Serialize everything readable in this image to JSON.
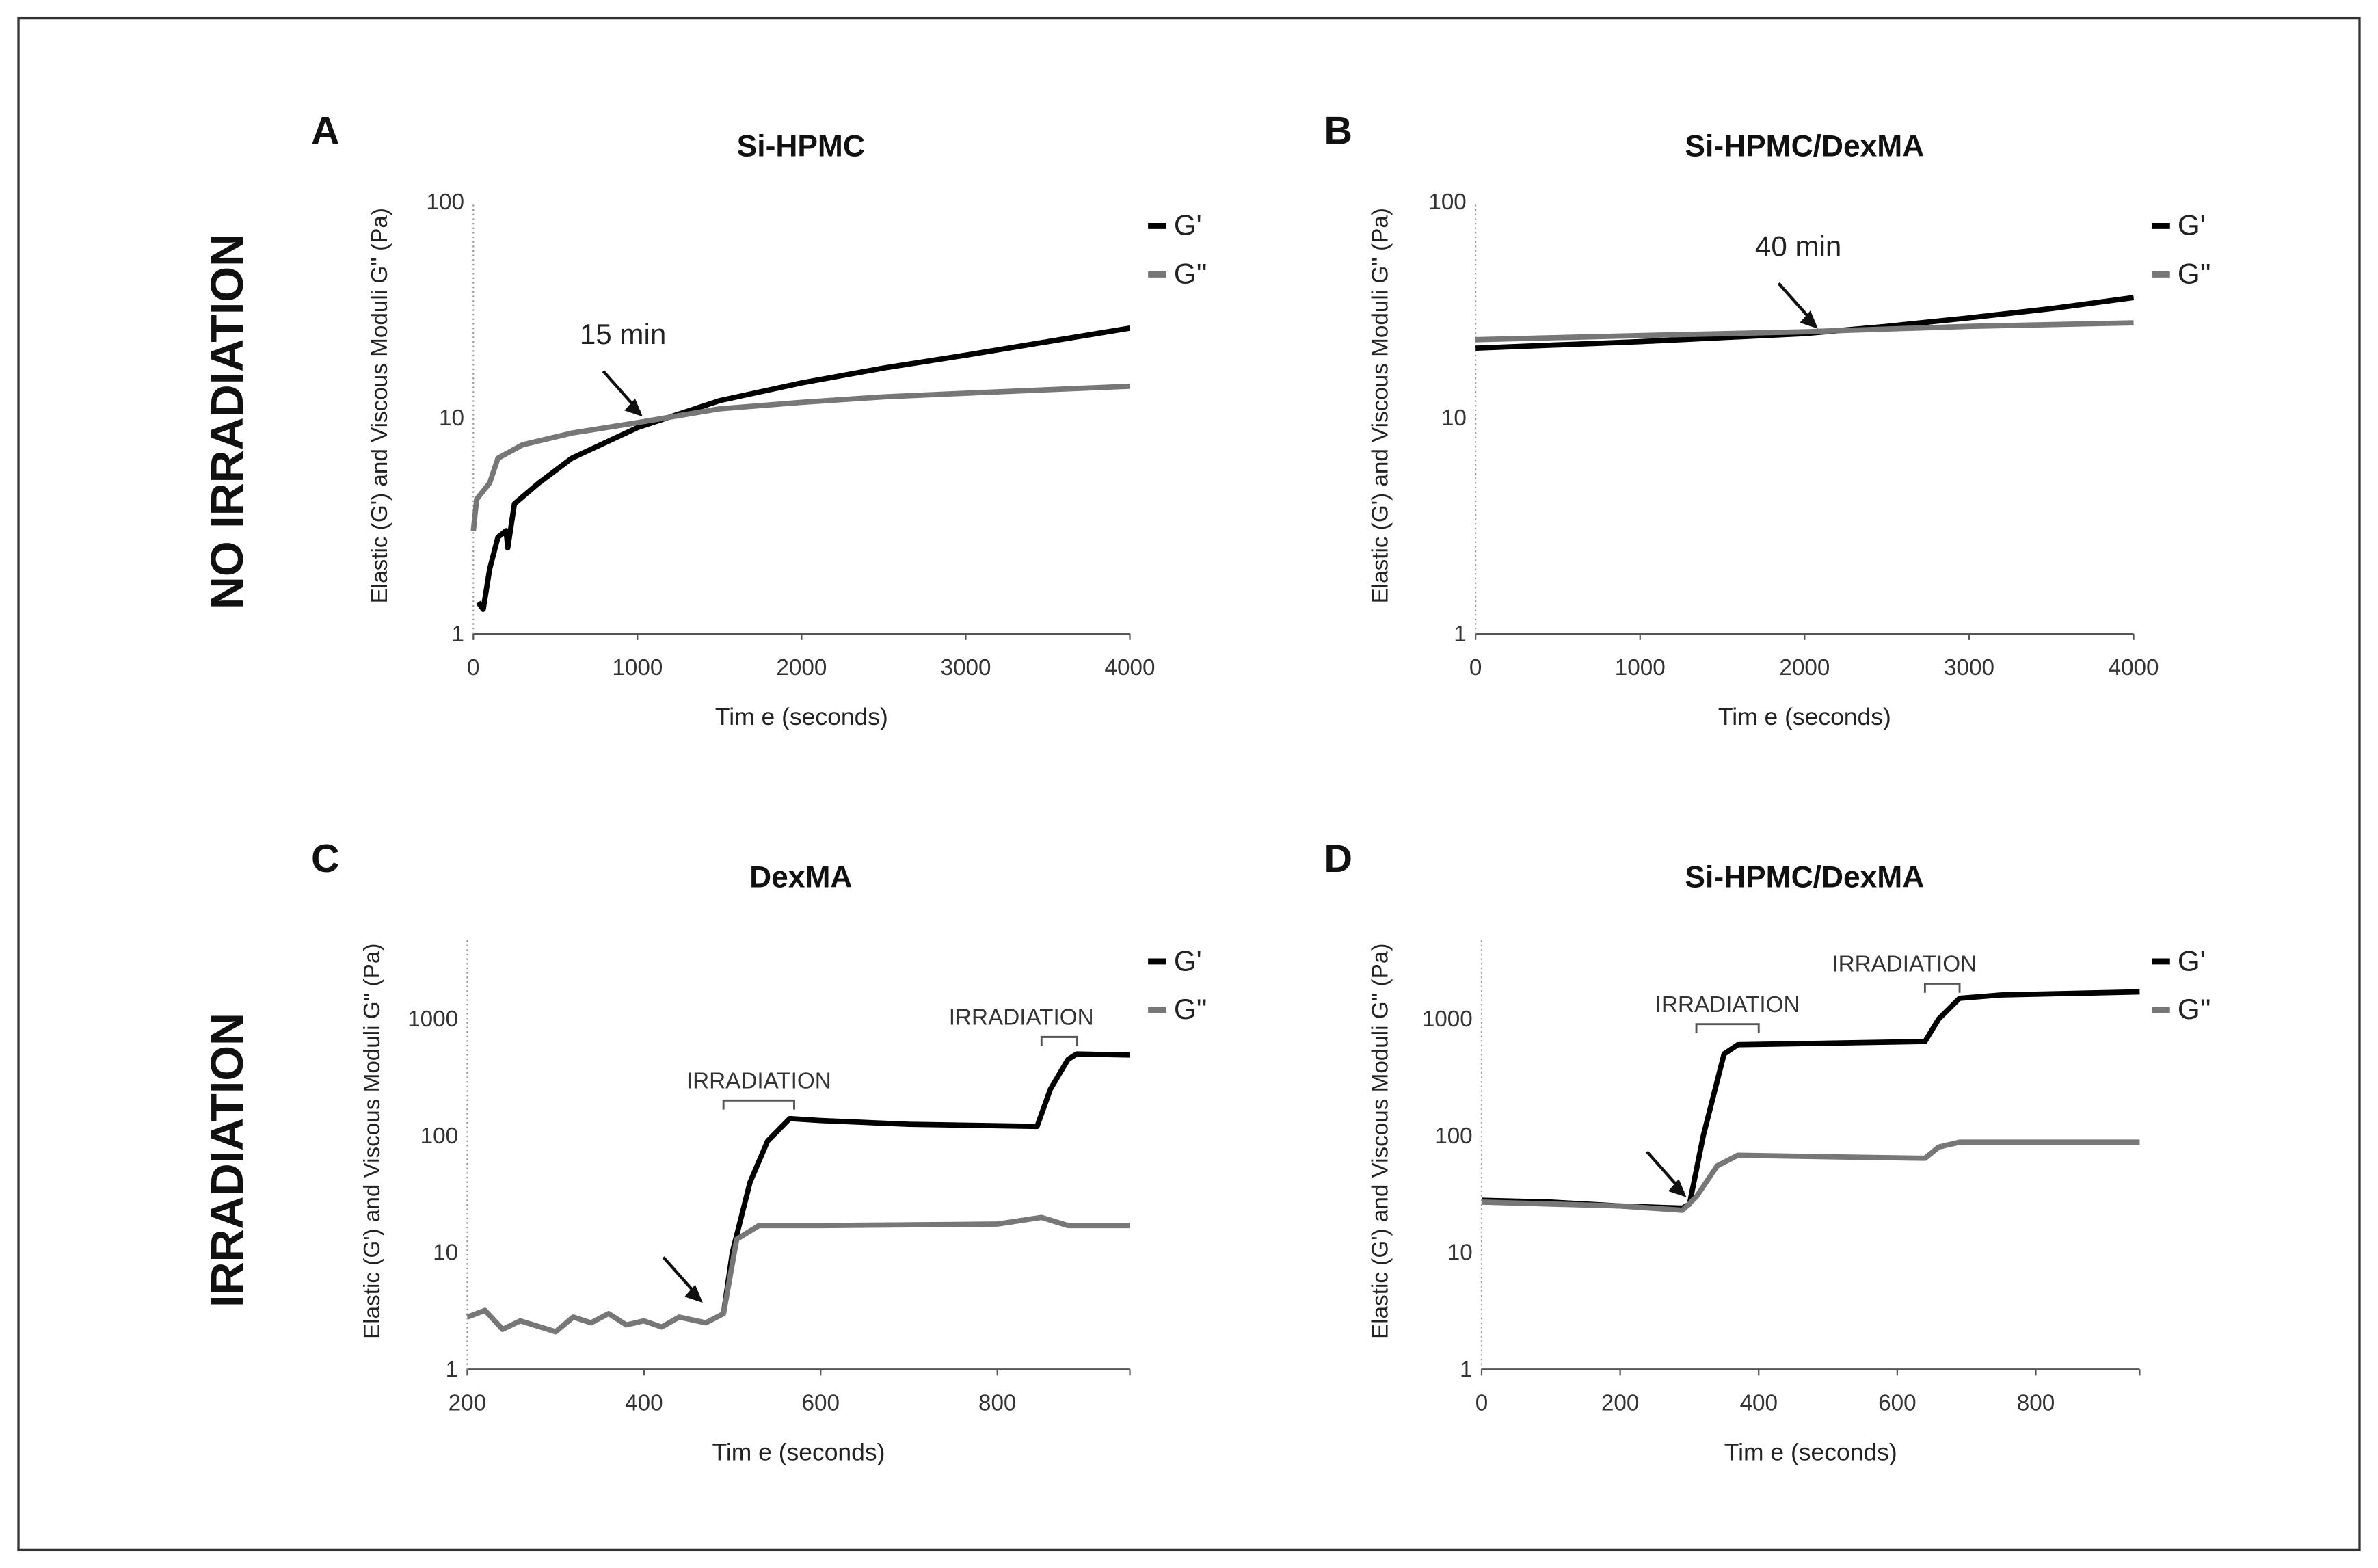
{
  "row_labels": [
    "NO IRRADIATION",
    "IRRADIATION"
  ],
  "chart_data": [
    {
      "panel": "A",
      "type": "line",
      "title": "Si-HPMC",
      "xlabel": "Tim e (seconds)",
      "ylabel": "Elastic (G') and Viscous Moduli G'' (Pa)",
      "xlim": [
        0,
        4000
      ],
      "ylim": [
        1,
        100
      ],
      "yscale": "log",
      "xticks": [
        "0",
        "1000",
        "2000",
        "3000",
        "4000"
      ],
      "xtick_values": [
        0,
        1000,
        2000,
        3000,
        4000
      ],
      "yticks": [
        "1",
        "10",
        "100"
      ],
      "ytick_values": [
        1,
        10,
        100
      ],
      "legend": [
        "G'",
        "G''"
      ],
      "legend_position": "top-right",
      "series": [
        {
          "name": "G'",
          "color": "#000000",
          "x": [
            30,
            60,
            100,
            150,
            200,
            210,
            250,
            400,
            600,
            1000,
            1500,
            2000,
            2500,
            3000,
            3500,
            4000
          ],
          "y": [
            1.4,
            1.3,
            2,
            2.8,
            3,
            2.5,
            4,
            5,
            6.5,
            9,
            12,
            14.5,
            17,
            19.5,
            22.5,
            26
          ]
        },
        {
          "name": "G''",
          "color": "#777777",
          "x": [
            0,
            20,
            100,
            150,
            300,
            600,
            1000,
            1500,
            2000,
            2500,
            3000,
            4000
          ],
          "y": [
            3,
            4.2,
            5,
            6.5,
            7.5,
            8.5,
            9.5,
            11,
            11.8,
            12.5,
            13,
            14
          ]
        }
      ],
      "annotations": [
        {
          "text": "15 min",
          "x": 1050,
          "y": 9.8
        }
      ],
      "irradiation": []
    },
    {
      "panel": "B",
      "type": "line",
      "title": "Si-HPMC/DexMA",
      "xlabel": "Tim e (seconds)",
      "ylabel": "Elastic (G') and Viscous Moduli G'' (Pa)",
      "xlim": [
        0,
        4000
      ],
      "ylim": [
        1,
        100
      ],
      "yscale": "log",
      "xticks": [
        "0",
        "1000",
        "2000",
        "3000",
        "4000"
      ],
      "xtick_values": [
        0,
        1000,
        2000,
        3000,
        4000
      ],
      "yticks": [
        "1",
        "10",
        "100"
      ],
      "ytick_values": [
        1,
        10,
        100
      ],
      "legend": [
        "G'",
        "G''"
      ],
      "legend_position": "top-right",
      "series": [
        {
          "name": "G'",
          "color": "#000000",
          "x": [
            0,
            1000,
            2000,
            2500,
            3000,
            3500,
            4000
          ],
          "y": [
            21,
            22.5,
            24.5,
            26.5,
            29,
            32,
            36
          ]
        },
        {
          "name": "G''",
          "color": "#777777",
          "x": [
            0,
            1000,
            2000,
            3000,
            4000
          ],
          "y": [
            23,
            24,
            25,
            26.5,
            27.5
          ]
        }
      ],
      "annotations": [
        {
          "text": "40 min",
          "x": 2100,
          "y": 25
        }
      ],
      "irradiation": []
    },
    {
      "panel": "C",
      "type": "line",
      "title": "DexMA",
      "xlabel": "Tim e (seconds)",
      "ylabel": "Elastic (G') and Viscous Moduli G'' (Pa)",
      "xlim": [
        200,
        950
      ],
      "ylim": [
        1,
        5000
      ],
      "yscale": "log",
      "xticks": [
        "200",
        "400",
        "600",
        "800"
      ],
      "xtick_values": [
        200,
        400,
        600,
        800
      ],
      "yticks": [
        "1",
        "10",
        "100",
        "1000"
      ],
      "ytick_values": [
        1,
        10,
        100,
        1000
      ],
      "legend": [
        "G'",
        "G''"
      ],
      "legend_position": "top-right",
      "series": [
        {
          "name": "G'",
          "color": "#000000",
          "x": [
            490,
            500,
            520,
            540,
            565,
            600,
            700,
            845,
            860,
            880,
            890,
            950
          ],
          "y": [
            3,
            10,
            40,
            90,
            140,
            135,
            125,
            120,
            250,
            450,
            500,
            490
          ]
        },
        {
          "name": "G''",
          "color": "#777777",
          "x": [
            200,
            220,
            240,
            260,
            300,
            320,
            340,
            360,
            380,
            400,
            420,
            440,
            470,
            490,
            505,
            530,
            600,
            800,
            850,
            880,
            950
          ],
          "y": [
            2.8,
            3.2,
            2.2,
            2.6,
            2.1,
            2.8,
            2.5,
            3,
            2.4,
            2.6,
            2.3,
            2.8,
            2.5,
            3,
            13,
            17,
            17,
            17.5,
            20,
            17,
            17
          ]
        }
      ],
      "annotations": [
        {
          "text": "",
          "x": 470,
          "y": 3.5
        }
      ],
      "irradiation": [
        {
          "text": "IRRADIATION",
          "x0": 490,
          "x1": 570,
          "y": 200
        },
        {
          "text": "IRRADIATION",
          "x0": 850,
          "x1": 890,
          "y": 700
        }
      ]
    },
    {
      "panel": "D",
      "type": "line",
      "title": "Si-HPMC/DexMA",
      "xlabel": "Tim e (seconds)",
      "ylabel": "Elastic (G') and Viscous Moduli G'' (Pa)",
      "xlim": [
        0,
        950
      ],
      "ylim": [
        1,
        5000
      ],
      "yscale": "log",
      "xticks": [
        "0",
        "200",
        "400",
        "600",
        "800"
      ],
      "xtick_values": [
        0,
        200,
        400,
        600,
        800
      ],
      "yticks": [
        "1",
        "10",
        "100",
        "1000"
      ],
      "ytick_values": [
        1,
        10,
        100,
        1000
      ],
      "legend": [
        "G'",
        "G''"
      ],
      "legend_position": "top-right",
      "series": [
        {
          "name": "G'",
          "color": "#000000",
          "x": [
            0,
            100,
            200,
            290,
            300,
            320,
            350,
            370,
            500,
            640,
            660,
            690,
            750,
            950
          ],
          "y": [
            28,
            27,
            25,
            24,
            26,
            100,
            500,
            600,
            620,
            640,
            1000,
            1500,
            1600,
            1700
          ]
        },
        {
          "name": "G''",
          "color": "#777777",
          "x": [
            0,
            200,
            290,
            310,
            340,
            370,
            500,
            640,
            660,
            690,
            950
          ],
          "y": [
            27,
            25,
            23,
            30,
            55,
            68,
            66,
            64,
            80,
            88,
            88
          ]
        }
      ],
      "annotations": [
        {
          "text": "",
          "x": 300,
          "y": 28
        }
      ],
      "irradiation": [
        {
          "text": "IRRADIATION",
          "x0": 310,
          "x1": 400,
          "y": 900
        },
        {
          "text": "IRRADIATION",
          "x0": 640,
          "x1": 690,
          "y": 2000
        }
      ]
    }
  ]
}
